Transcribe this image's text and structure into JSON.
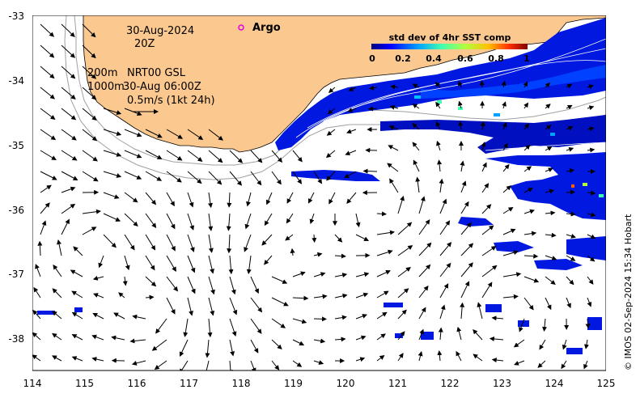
{
  "map": {
    "date_label": "30-Aug-2024",
    "hour_label": "20Z",
    "depth_200_label": "200m",
    "depth_1000_label": "1000m",
    "product_label": "NRT00 GSL",
    "product_time_label": "30-Aug 06:00Z",
    "scale_label": "0.5m/s (1kt 24h)",
    "argo_label": "Argo",
    "credit": "© IMOS 02-Sep-2024 15:34 Hobart",
    "colors": {
      "land": "#fbc98f",
      "ocean": "#ffffff",
      "argo_marker": "#e000e0",
      "isobath": "#a0a0a0",
      "arrow": "#000000"
    }
  },
  "colorbar": {
    "title": "std dev of 4hr SST comp",
    "ticks": [
      "0",
      "0.2",
      "0.4",
      "0.6",
      "0.8",
      "1"
    ]
  },
  "chart_data": {
    "type": "map",
    "x_ticks": [
      "114",
      "115",
      "116",
      "117",
      "118",
      "119",
      "120",
      "121",
      "122",
      "123",
      "124",
      "125"
    ],
    "y_ticks": [
      "-33",
      "-34",
      "-35",
      "-36",
      "-37",
      "-38"
    ],
    "xlim": [
      114,
      125
    ],
    "ylim": [
      -38.5,
      -33
    ],
    "argo_float": {
      "lon": 118.0,
      "lat": -33.2
    }
  }
}
